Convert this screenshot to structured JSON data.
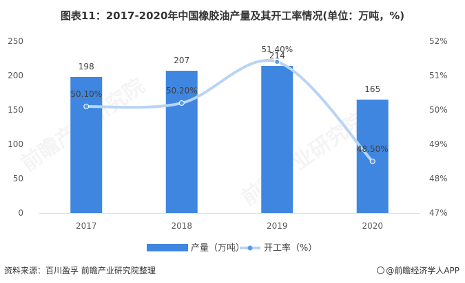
{
  "title": "图表11：2017-2020年中国橡胶油产量及其开工率情况(单位：万吨，%)",
  "source": "资料来源：百川盈孚 前瞻产业研究院整理",
  "brand": "@前瞻经济学人APP",
  "watermark": "前瞻产业研究院",
  "chart_data": {
    "type": "bar",
    "categories": [
      "2017",
      "2018",
      "2019",
      "2020"
    ],
    "series": [
      {
        "name": "产量（万吨）",
        "type": "bar",
        "axis": "left",
        "values": [
          198,
          207,
          214,
          165
        ],
        "labels": [
          "198",
          "207",
          "214",
          "165"
        ],
        "color": "#3f86e0"
      },
      {
        "name": "开工率（%）",
        "type": "line",
        "axis": "right",
        "values": [
          50.1,
          50.2,
          51.4,
          48.5
        ],
        "labels": [
          "50.10%",
          "50.20%",
          "51.40%",
          "48.50%"
        ],
        "color": "#b8d4f4",
        "marker_color": "#5b9be6"
      }
    ],
    "left_axis": {
      "min": 0,
      "max": 250,
      "ticks": [
        "0",
        "50",
        "100",
        "150",
        "200",
        "250"
      ]
    },
    "right_axis": {
      "min": 47,
      "max": 52,
      "ticks": [
        "47%",
        "48%",
        "49%",
        "50%",
        "51%",
        "52%"
      ]
    },
    "legend_position": "bottom",
    "grid": false
  }
}
